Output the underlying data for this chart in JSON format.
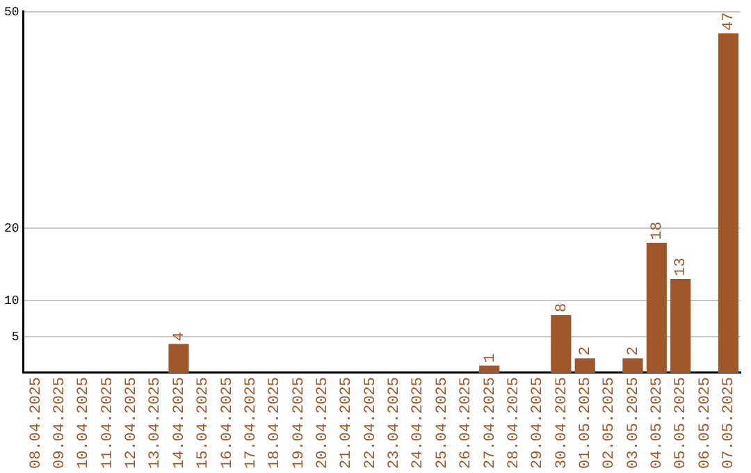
{
  "chart_data": {
    "type": "bar",
    "categories": [
      "08.04.2025",
      "09.04.2025",
      "10.04.2025",
      "11.04.2025",
      "12.04.2025",
      "13.04.2025",
      "14.04.2025",
      "15.04.2025",
      "16.04.2025",
      "17.04.2025",
      "18.04.2025",
      "19.04.2025",
      "20.04.2025",
      "21.04.2025",
      "22.04.2025",
      "23.04.2025",
      "24.04.2025",
      "25.04.2025",
      "26.04.2025",
      "27.04.2025",
      "28.04.2025",
      "29.04.2025",
      "30.04.2025",
      "01.05.2025",
      "02.05.2025",
      "03.05.2025",
      "04.05.2025",
      "05.05.2025",
      "06.05.2025",
      "07.05.2025"
    ],
    "values": [
      0,
      0,
      0,
      0,
      0,
      0,
      4,
      0,
      0,
      0,
      0,
      0,
      0,
      0,
      0,
      0,
      0,
      0,
      0,
      1,
      0,
      0,
      8,
      2,
      0,
      2,
      18,
      13,
      0,
      47
    ],
    "value_labels": [
      null,
      null,
      null,
      null,
      null,
      null,
      "4",
      null,
      null,
      null,
      null,
      null,
      null,
      null,
      null,
      null,
      null,
      null,
      null,
      "1",
      null,
      null,
      "8",
      "2",
      null,
      "2",
      "18",
      "13",
      null,
      "47"
    ],
    "color": "#a0582a",
    "ylim": [
      0,
      50
    ],
    "yticks": [
      5,
      10,
      20,
      50
    ],
    "grid": "y",
    "legend": false
  }
}
